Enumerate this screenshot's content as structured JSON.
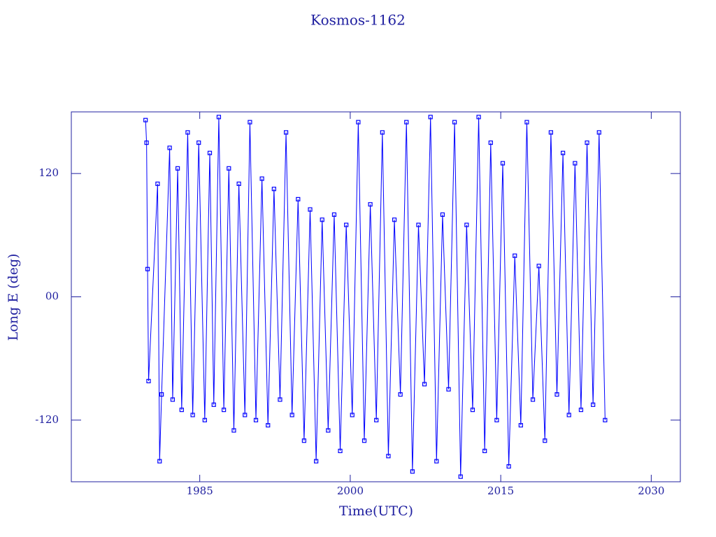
{
  "chart_data": {
    "type": "line",
    "title": "Kosmos-1162",
    "xlabel": "Time(UTC)",
    "ylabel": "Long E (deg)",
    "xlim": [
      1972.2,
      2032.9
    ],
    "ylim": [
      -180,
      180
    ],
    "xticks": [
      1985,
      2000,
      2015,
      2030
    ],
    "yticks": [
      -120,
      {
        "value": 0,
        "label": "00"
      },
      120
    ],
    "markers": true,
    "series": [
      {
        "color": "#0000ff",
        "x": [
          1979.6,
          1979.7,
          1979.8,
          1979.9,
          1980.8,
          1981.0,
          1981.2,
          1982.0,
          1982.3,
          1982.8,
          1983.2,
          1983.8,
          1984.3,
          1984.9,
          1985.5,
          1986.0,
          1986.4,
          1986.9,
          1987.4,
          1987.9,
          1988.4,
          1988.9,
          1989.5,
          1990.0,
          1990.6,
          1991.2,
          1991.8,
          1992.4,
          1993.0,
          1993.6,
          1994.2,
          1994.8,
          1995.4,
          1996.0,
          1996.6,
          1997.2,
          1997.8,
          1998.4,
          1999.0,
          1999.6,
          2000.2,
          2000.8,
          2001.4,
          2002.0,
          2002.6,
          2003.2,
          2003.8,
          2004.4,
          2005.0,
          2005.6,
          2006.2,
          2006.8,
          2007.4,
          2008.0,
          2008.6,
          2009.2,
          2009.8,
          2010.4,
          2011.0,
          2011.6,
          2012.2,
          2012.8,
          2013.4,
          2014.0,
          2014.6,
          2015.2,
          2015.8,
          2016.4,
          2017.0,
          2017.6,
          2018.2,
          2018.8,
          2019.4,
          2020.0,
          2020.6,
          2021.2,
          2021.8,
          2022.4,
          2023.0,
          2023.6,
          2024.2,
          2024.8,
          2025.4
        ],
        "values": [
          172,
          150,
          27,
          -82,
          110,
          -160,
          -95,
          145,
          -100,
          125,
          -110,
          160,
          -115,
          150,
          -120,
          140,
          -105,
          175,
          -110,
          125,
          -130,
          110,
          -115,
          170,
          -120,
          115,
          -125,
          105,
          -100,
          160,
          -115,
          95,
          -140,
          85,
          -160,
          75,
          -130,
          80,
          -150,
          70,
          -115,
          170,
          -140,
          90,
          -120,
          160,
          -155,
          75,
          -95,
          170,
          -170,
          70,
          -85,
          175,
          -160,
          80,
          -90,
          170,
          -175,
          70,
          -110,
          175,
          -150,
          150,
          -120,
          130,
          -165,
          40,
          -125,
          170,
          -100,
          30,
          -140,
          160,
          -95,
          140,
          -115,
          130,
          -110,
          150,
          -105,
          160,
          -120
        ]
      }
    ]
  }
}
